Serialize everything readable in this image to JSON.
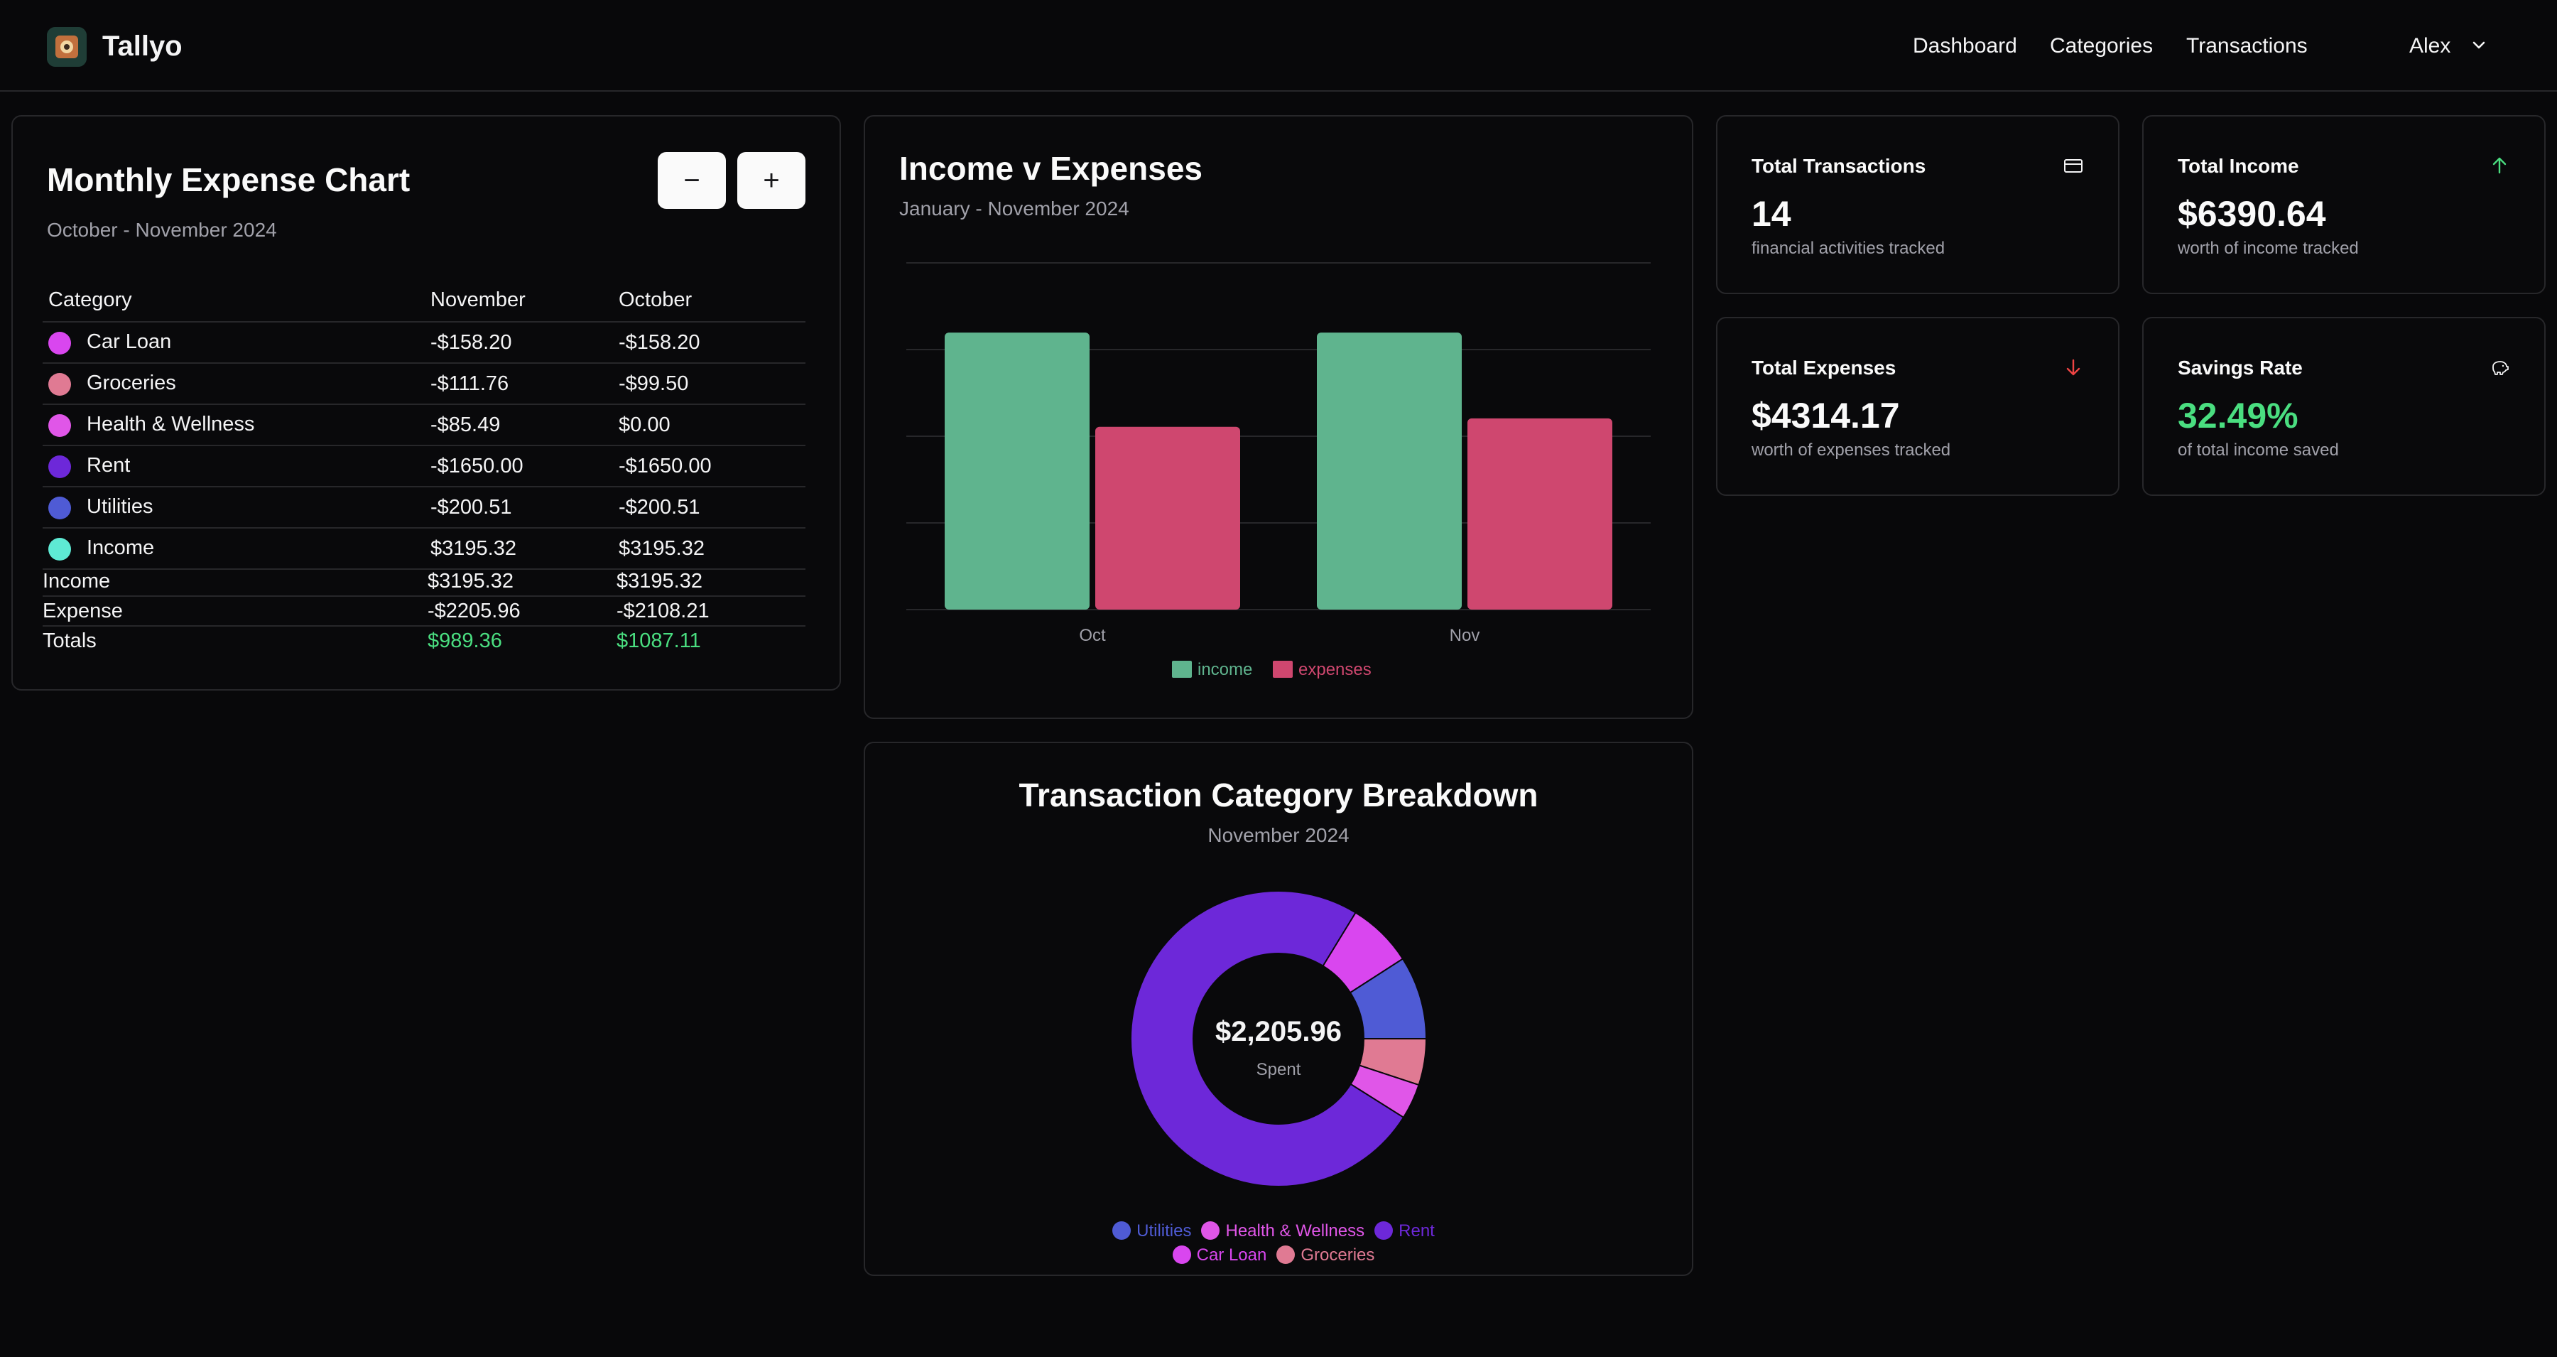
{
  "app": {
    "name": "Tallyo",
    "logo_icon": "app-logo-icon"
  },
  "nav": {
    "dashboard": "Dashboard",
    "categories": "Categories",
    "transactions": "Transactions",
    "user": "Alex"
  },
  "expense_card": {
    "title": "Monthly Expense Chart",
    "subtitle": "October - November 2024",
    "minus": "−",
    "plus": "+",
    "headers": {
      "category": "Category",
      "nov": "November",
      "oct": "October"
    },
    "rows": [
      {
        "name": "Car Loan",
        "color": "#d946ef",
        "nov": "-$158.20",
        "oct": "-$158.20"
      },
      {
        "name": "Groceries",
        "color": "#e07a93",
        "nov": "-$111.76",
        "oct": "-$99.50"
      },
      {
        "name": "Health & Wellness",
        "color": "#e056e8",
        "nov": "-$85.49",
        "oct": "$0.00"
      },
      {
        "name": "Rent",
        "color": "#6d28d9",
        "nov": "-$1650.00",
        "oct": "-$1650.00"
      },
      {
        "name": "Utilities",
        "color": "#4f5bd5",
        "nov": "-$200.51",
        "oct": "-$200.51"
      },
      {
        "name": "Income",
        "color": "#5eead4",
        "nov": "$3195.32",
        "oct": "$3195.32"
      }
    ],
    "summary": [
      {
        "label": "Income",
        "nov": "$3195.32",
        "oct": "$3195.32"
      },
      {
        "label": "Expense",
        "nov": "-$2205.96",
        "oct": "-$2108.21"
      },
      {
        "label": "Totals",
        "nov": "$989.36",
        "oct": "$1087.11"
      }
    ]
  },
  "income_chart": {
    "title": "Income v Expenses",
    "subtitle": "January - November 2024"
  },
  "breakdown": {
    "title": "Transaction Category Breakdown",
    "subtitle": "November 2024",
    "center_value": "$2,205.96",
    "center_label": "Spent"
  },
  "stats": {
    "transactions": {
      "title": "Total Transactions",
      "value": "14",
      "sub": "financial activities tracked",
      "icon": "credit-card-icon"
    },
    "income": {
      "title": "Total Income",
      "value": "$6390.64",
      "sub": "worth of income tracked",
      "icon": "arrow-up-icon"
    },
    "expenses": {
      "title": "Total Expenses",
      "value": "$4314.17",
      "sub": "worth of expenses tracked",
      "icon": "arrow-down-icon"
    },
    "savings": {
      "title": "Savings Rate",
      "value": "32.49%",
      "sub": "of total income saved",
      "icon": "piggy-bank-icon"
    }
  },
  "colors": {
    "income": "#5fb48e",
    "expenses": "#cf476f",
    "positive": "#4ade80",
    "negative": "#ef4444"
  },
  "chart_data": [
    {
      "type": "bar",
      "title": "Income v Expenses",
      "subtitle": "January - November 2024",
      "categories": [
        "Oct",
        "Nov"
      ],
      "series": [
        {
          "name": "income",
          "color": "#5fb48e",
          "values": [
            3195.32,
            3195.32
          ]
        },
        {
          "name": "expenses",
          "color": "#cf476f",
          "values": [
            2108.21,
            2205.96
          ]
        }
      ],
      "ylim": [
        0,
        4000
      ],
      "grid": true,
      "legend": "bottom"
    },
    {
      "type": "pie",
      "title": "Transaction Category Breakdown",
      "subtitle": "November 2024",
      "slices": [
        {
          "name": "Utilities",
          "value": 200.51,
          "color": "#4f5bd5"
        },
        {
          "name": "Groceries",
          "value": 111.76,
          "color": "#e07a93"
        },
        {
          "name": "Health & Wellness",
          "value": 85.49,
          "color": "#e056e8"
        },
        {
          "name": "Rent",
          "value": 1650.0,
          "color": "#6d28d9"
        },
        {
          "name": "Car Loan",
          "value": 158.2,
          "color": "#d946ef"
        }
      ],
      "legend": "bottom"
    }
  ]
}
